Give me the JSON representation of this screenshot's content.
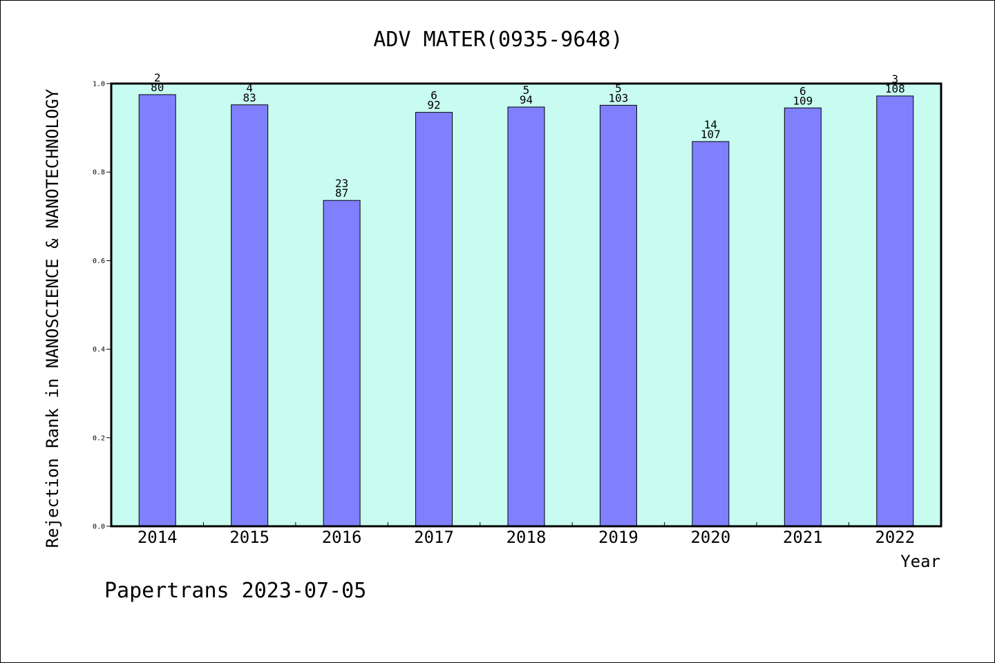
{
  "chart_data": {
    "type": "bar",
    "title": "ADV MATER(0935-9648)",
    "xlabel": "Year",
    "ylabel": "Rejection Rank in NANOSCIENCE & NANOTECHNOLOGY",
    "ylim": [
      0,
      1.0
    ],
    "yticks": [
      "0.0",
      "0.2",
      "0.4",
      "0.6",
      "0.8",
      "1.0"
    ],
    "grid": false,
    "categories": [
      "2014",
      "2015",
      "2016",
      "2017",
      "2018",
      "2019",
      "2020",
      "2021",
      "2022"
    ],
    "values": [
      0.975,
      0.952,
      0.736,
      0.935,
      0.947,
      0.951,
      0.869,
      0.945,
      0.972
    ],
    "rank_labels": [
      "2",
      "4",
      "23",
      "6",
      "5",
      "5",
      "14",
      "6",
      "3"
    ],
    "total_labels": [
      "80",
      "83",
      "87",
      "92",
      "94",
      "103",
      "107",
      "109",
      "108"
    ],
    "colors": {
      "bar": "#8080ff",
      "plot_background": "#c8fcf0",
      "border": "#000000"
    }
  },
  "footer": "Papertrans 2023-07-05"
}
